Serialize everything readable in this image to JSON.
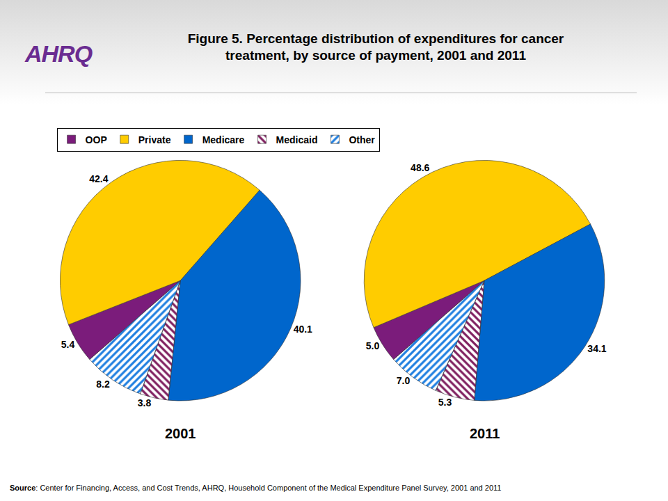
{
  "title": "Figure 5. Percentage distribution of expenditures for cancer treatment, by source of payment, 2001 and 2011",
  "logo": "AHRQ",
  "source_label": "Source",
  "source": ": Center for Financing, Access, and Cost Trends, AHRQ,  Household Component of the Medical Expenditure Panel Survey, 2001 and  2011",
  "chart_data": [
    {
      "type": "pie",
      "title": "2001",
      "categories": [
        "OOP",
        "Private",
        "Medicare",
        "Medicaid",
        "Other"
      ],
      "values": [
        5.4,
        42.4,
        40.1,
        3.8,
        8.2
      ],
      "value_labels": [
        "5.4",
        "42.4",
        "40.1",
        "3.8",
        "8.2"
      ],
      "colors": [
        "#7b1c7b",
        "#ffcc00",
        "#0066cc",
        "#7f1f5f",
        "#1f7fe0"
      ],
      "data_labels": true,
      "legend": "top left"
    },
    {
      "type": "pie",
      "title": "2011",
      "categories": [
        "OOP",
        "Private",
        "Medicare",
        "Medicaid",
        "Other"
      ],
      "values": [
        5.0,
        48.6,
        34.1,
        5.3,
        7.0
      ],
      "value_labels": [
        "5.0",
        "48.6",
        "34.1",
        "5.3",
        "7.0"
      ],
      "colors": [
        "#7b1c7b",
        "#ffcc00",
        "#0066cc",
        "#7f1f5f",
        "#1f7fe0"
      ],
      "data_labels": true,
      "legend": "top left"
    }
  ]
}
